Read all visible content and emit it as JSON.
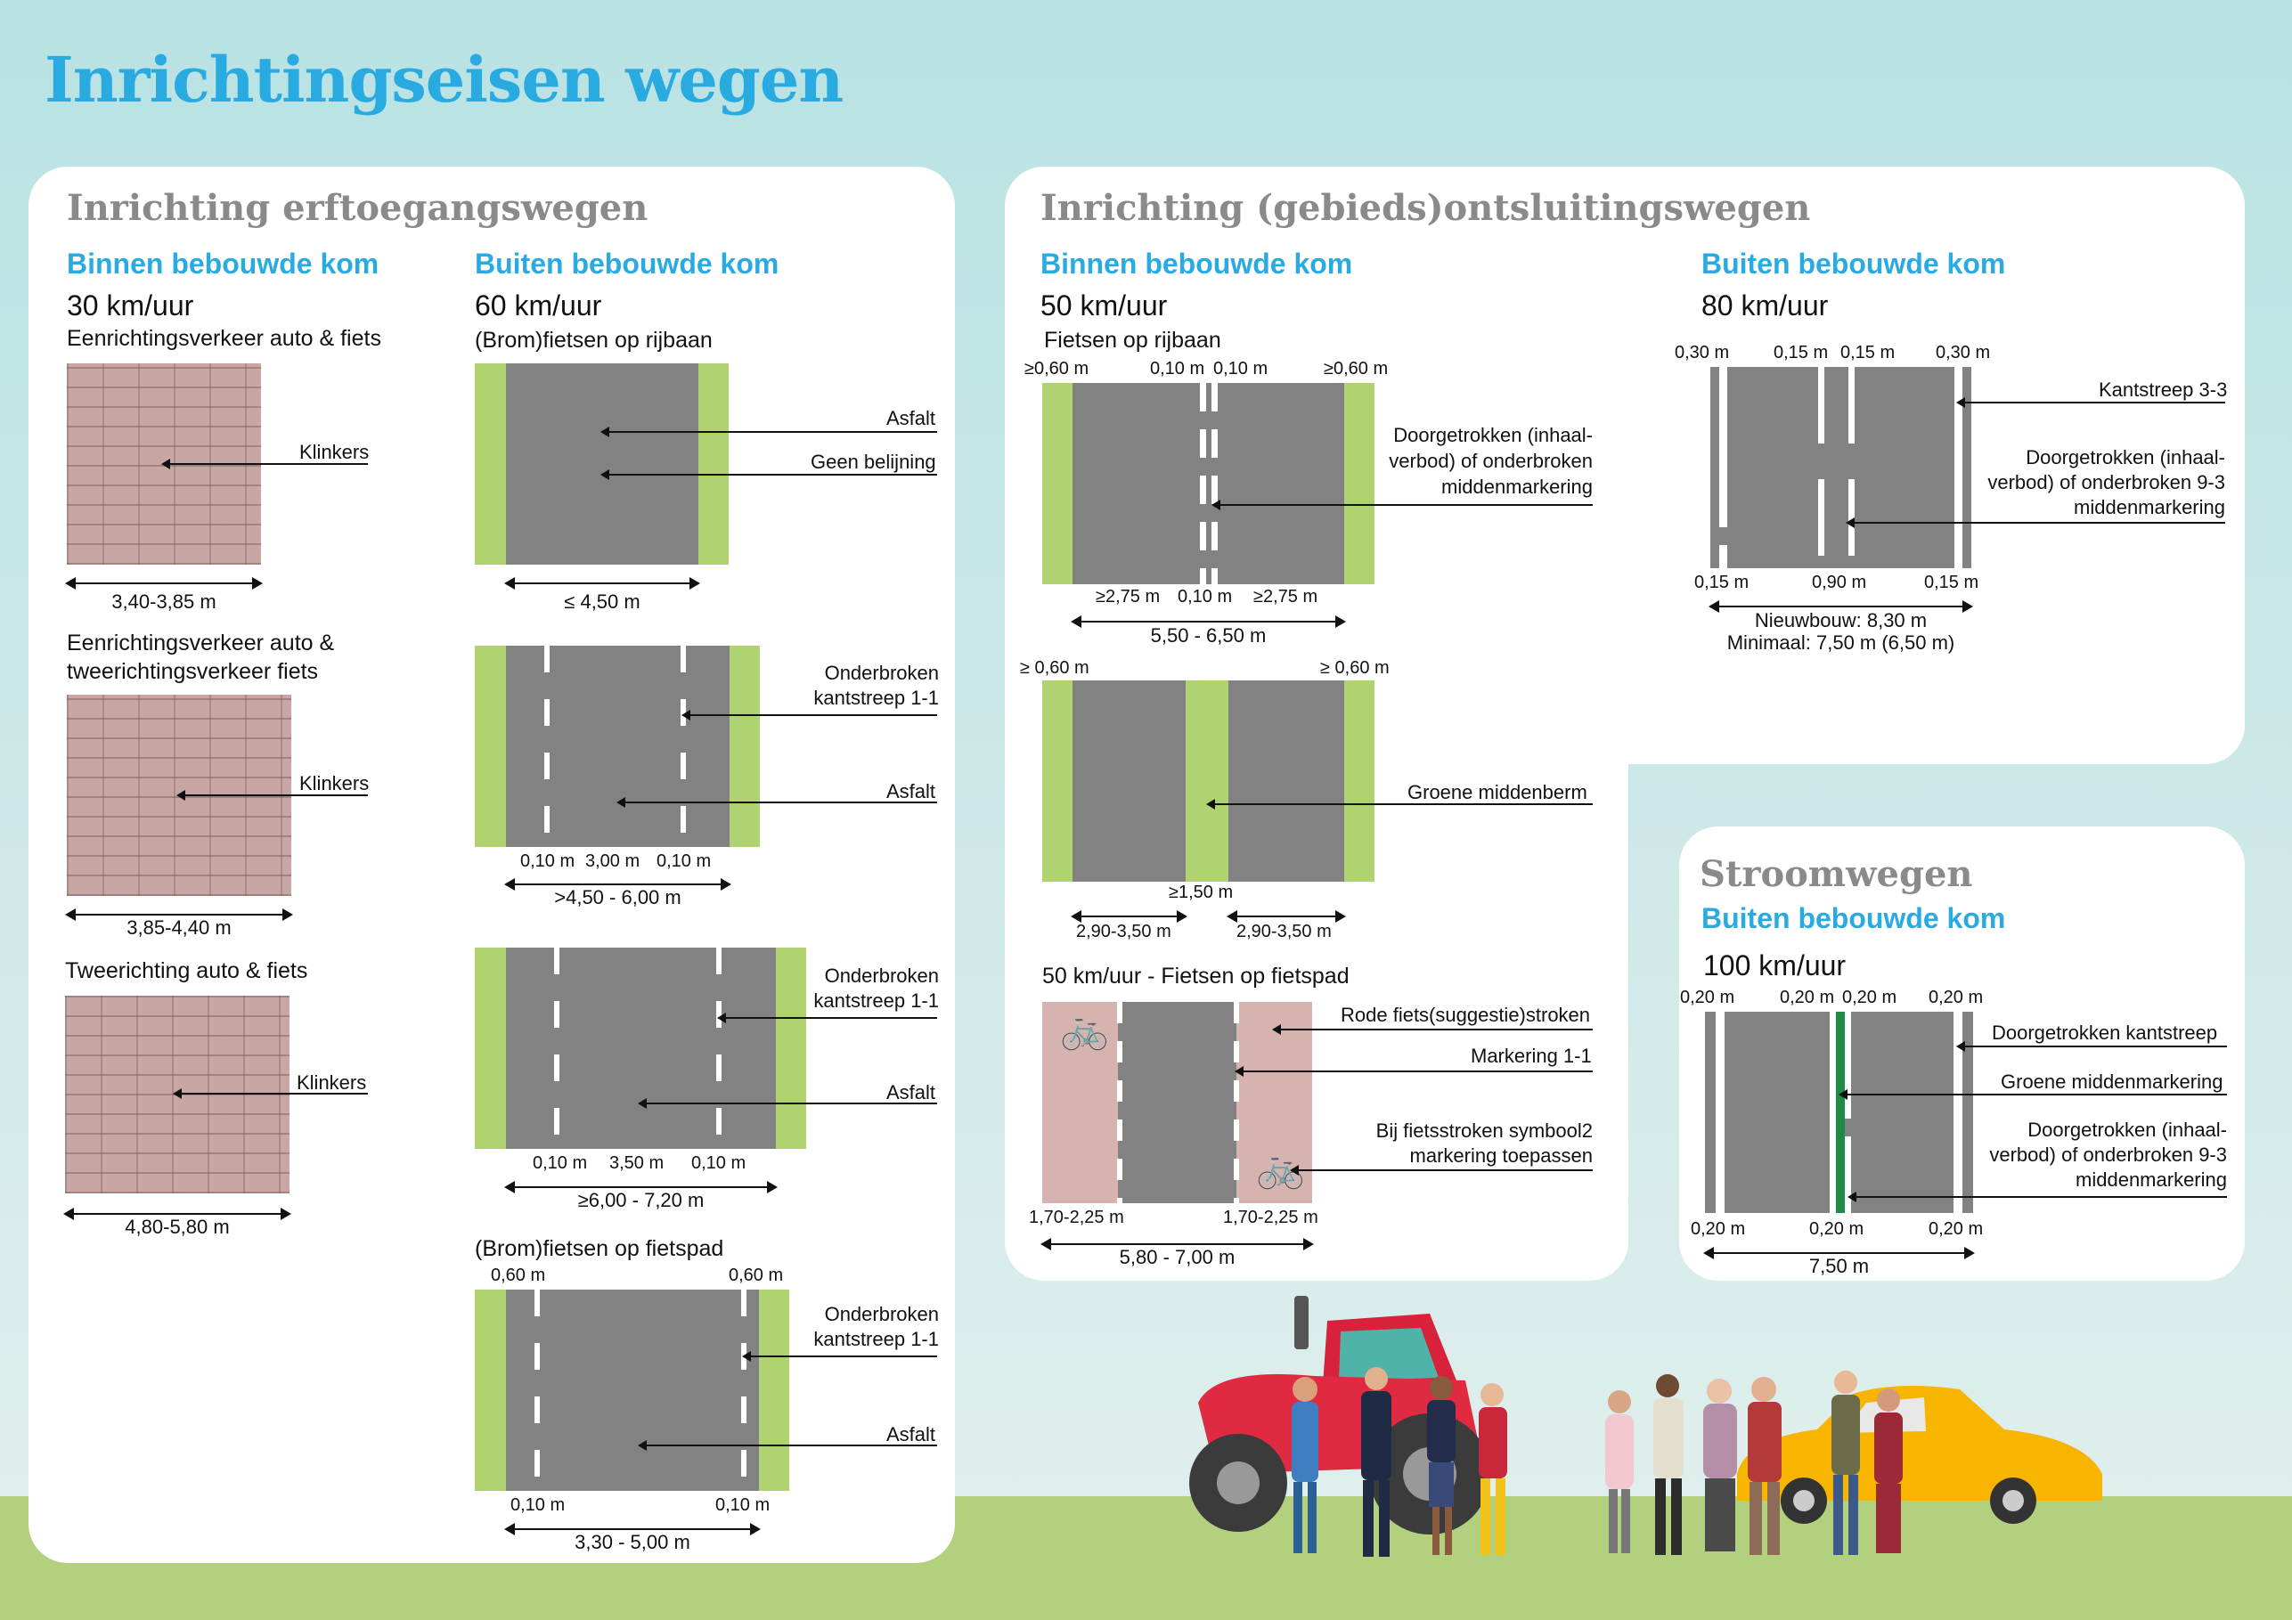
{
  "title": "Inrichtingseisen wegen",
  "erf": {
    "title": "Inrichting erftoegangswegen",
    "binnen": {
      "heading": "Binnen bebouwde kom",
      "speed": "30 km/uur",
      "items": [
        {
          "desc": "Eenrichtingsverkeer auto & fiets",
          "surface": "Klinkers",
          "width": "3,40-3,85 m"
        },
        {
          "desc": "Eenrichtingsverkeer auto & tweerichtingsverkeer fiets",
          "surface": "Klinkers",
          "width": "3,85-4,40 m"
        },
        {
          "desc": "Tweerichting auto & fiets",
          "surface": "Klinkers",
          "width": "4,80-5,80 m"
        }
      ]
    },
    "buiten": {
      "heading": "Buiten bebouwde kom",
      "speed": "60 km/uur",
      "desc1": "(Brom)fietsen op rijbaan",
      "r1": {
        "l1": "Asfalt",
        "l2": "Geen belijning",
        "w": "≤ 4,50 m"
      },
      "r2": {
        "l1": "Onderbroken kantstreep 1-1",
        "l2": "Asfalt",
        "m1": "0,10 m",
        "m2": "3,00 m",
        "m3": "0,10 m",
        "w": ">4,50 - 6,00 m"
      },
      "r3": {
        "l1": "Onderbroken kantstreep 1-1",
        "l2": "Asfalt",
        "m1": "0,10 m",
        "m2": "3,50 m",
        "m3": "0,10 m",
        "w": "≥6,00 - 7,20 m"
      },
      "desc4": "(Brom)fietsen op fietspad",
      "r4": {
        "t1": "0,60 m",
        "t2": "0,60 m",
        "l1": "Onderbroken kantstreep 1-1",
        "l2": "Asfalt",
        "m1": "0,10 m",
        "m2": "0,10 m",
        "w": "3,30 - 5,00 m"
      }
    }
  },
  "gebied": {
    "title": "Inrichting (gebieds)ontsluitingswegen",
    "binnen": {
      "heading": "Binnen bebouwde kom",
      "speed": "50 km/uur",
      "desc1": "Fietsen op rijbaan",
      "r1": {
        "t1": "≥0,60 m",
        "t2": "0,10 m",
        "t3": "0,10 m",
        "t4": "≥0,60 m",
        "label": "Doorgetrokken (inhaal- verbod) of onderbroken middenmarkering",
        "b1": "≥2,75 m",
        "b2": "0,10 m",
        "b3": "≥2,75 m",
        "w": "5,50 - 6,50 m"
      },
      "r2": {
        "t1": "≥ 0,60 m",
        "t2": "≥ 0,60 m",
        "label": "Groene middenberm",
        "m": "≥1,50 m",
        "w1": "2,90-3,50 m",
        "w2": "2,90-3,50 m"
      },
      "desc3": "50 km/uur - Fietsen op fietspad",
      "r3": {
        "l1": "Rode fiets(suggestie)stroken",
        "l2": "Markering 1-1",
        "l3": "Bij fietsstroken symbool2 markering toepassen",
        "b1": "1,70-2,25 m",
        "b2": "1,70-2,25 m",
        "w": "5,80 - 7,00 m"
      }
    },
    "buiten": {
      "heading": "Buiten bebouwde kom",
      "speed": "80 km/uur",
      "t1": "0,30 m",
      "t2": "0,15 m",
      "t3": "0,15 m",
      "t4": "0,30 m",
      "l1": "Kantstreep 3-3",
      "l2": "Doorgetrokken (inhaal- verbod) of onderbroken 9-3 middenmarkering",
      "b1": "0,15 m",
      "b2": "0,90 m",
      "b3": "0,15 m",
      "w1": "Nieuwbouw: 8,30 m",
      "w2": "Minimaal: 7,50 m (6,50 m)"
    }
  },
  "stroom": {
    "title": "Stroomwegen",
    "heading": "Buiten bebouwde kom",
    "speed": "100 km/uur",
    "t1": "0,20 m",
    "t2": "0,20 m",
    "t3": "0,20 m",
    "t4": "0,20 m",
    "l1": "Doorgetrokken kantstreep",
    "l2": "Groene middenmarkering",
    "l3": "Doorgetrokken (inhaal- verbod) of onderbroken 9-3 middenmarkering",
    "b1": "0,20 m",
    "b2": "0,20 m",
    "b3": "0,20 m",
    "w": "7,50 m"
  },
  "colors": {
    "title": "#29abe2",
    "asphalt": "#828282",
    "verge": "#b0d372",
    "brick": "#c8a6a4",
    "bikelane": "#d7b3b0",
    "grass": "#b2d07e",
    "greenline": "#1f8a48"
  }
}
